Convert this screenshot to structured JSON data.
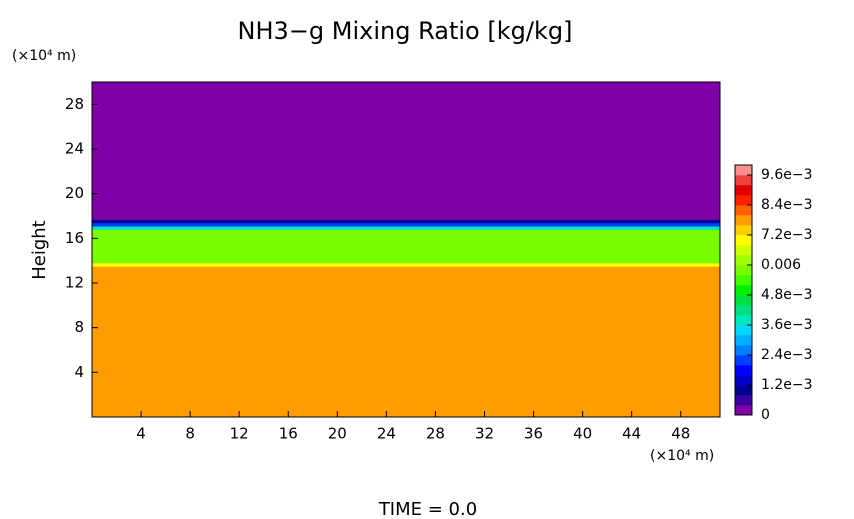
{
  "chart_data": {
    "type": "heatmap",
    "title": "NH3−g Mixing Ratio [kg/kg]",
    "y_label": "Height",
    "y_unit": "(×10⁴ m)",
    "x_unit": "(×10⁴ m)",
    "footer": "TIME = 0.0",
    "xlim": [
      0,
      51.2
    ],
    "xticks": [
      4,
      8,
      12,
      16,
      20,
      24,
      28,
      32,
      36,
      40,
      44,
      48
    ],
    "ylim": [
      0,
      30
    ],
    "yticks": [
      4,
      8,
      12,
      16,
      20,
      24,
      28
    ],
    "y": [
      0,
      13.5,
      13.8,
      16.8,
      17.1,
      17.4,
      17.7,
      30
    ],
    "values": [
      0.0078,
      0.007,
      0.0058,
      0.0038,
      0.0022,
      0.001,
      0
    ],
    "clim": [
      0,
      0.01
    ],
    "cticks": [
      0,
      {
        "value": 0.0012,
        "label": "1.2e−3"
      },
      {
        "value": 0.0024,
        "label": "2.4e−3"
      },
      {
        "value": 0.0036,
        "label": "3.6e−3"
      },
      {
        "value": 0.0048,
        "label": "4.8e−3"
      },
      0.006,
      {
        "value": 0.0072,
        "label": "7.2e−3"
      },
      {
        "value": 0.0084,
        "label": "8.4e−3"
      },
      {
        "value": 0.0096,
        "label": "9.6e−3"
      }
    ],
    "colormap": [
      "#8000a8",
      "#3c00a0",
      "#000090",
      "#0000c8",
      "#0000ff",
      "#0040ff",
      "#0080ff",
      "#00b0ff",
      "#00d8ff",
      "#00e8c0",
      "#00e080",
      "#00e040",
      "#00f000",
      "#40ff00",
      "#7cfc00",
      "#a0ff00",
      "#d0ff00",
      "#ffff00",
      "#ffd000",
      "#ff9c00",
      "#ff6000",
      "#ff2000",
      "#e00000",
      "#f04040",
      "#ff9090"
    ]
  }
}
